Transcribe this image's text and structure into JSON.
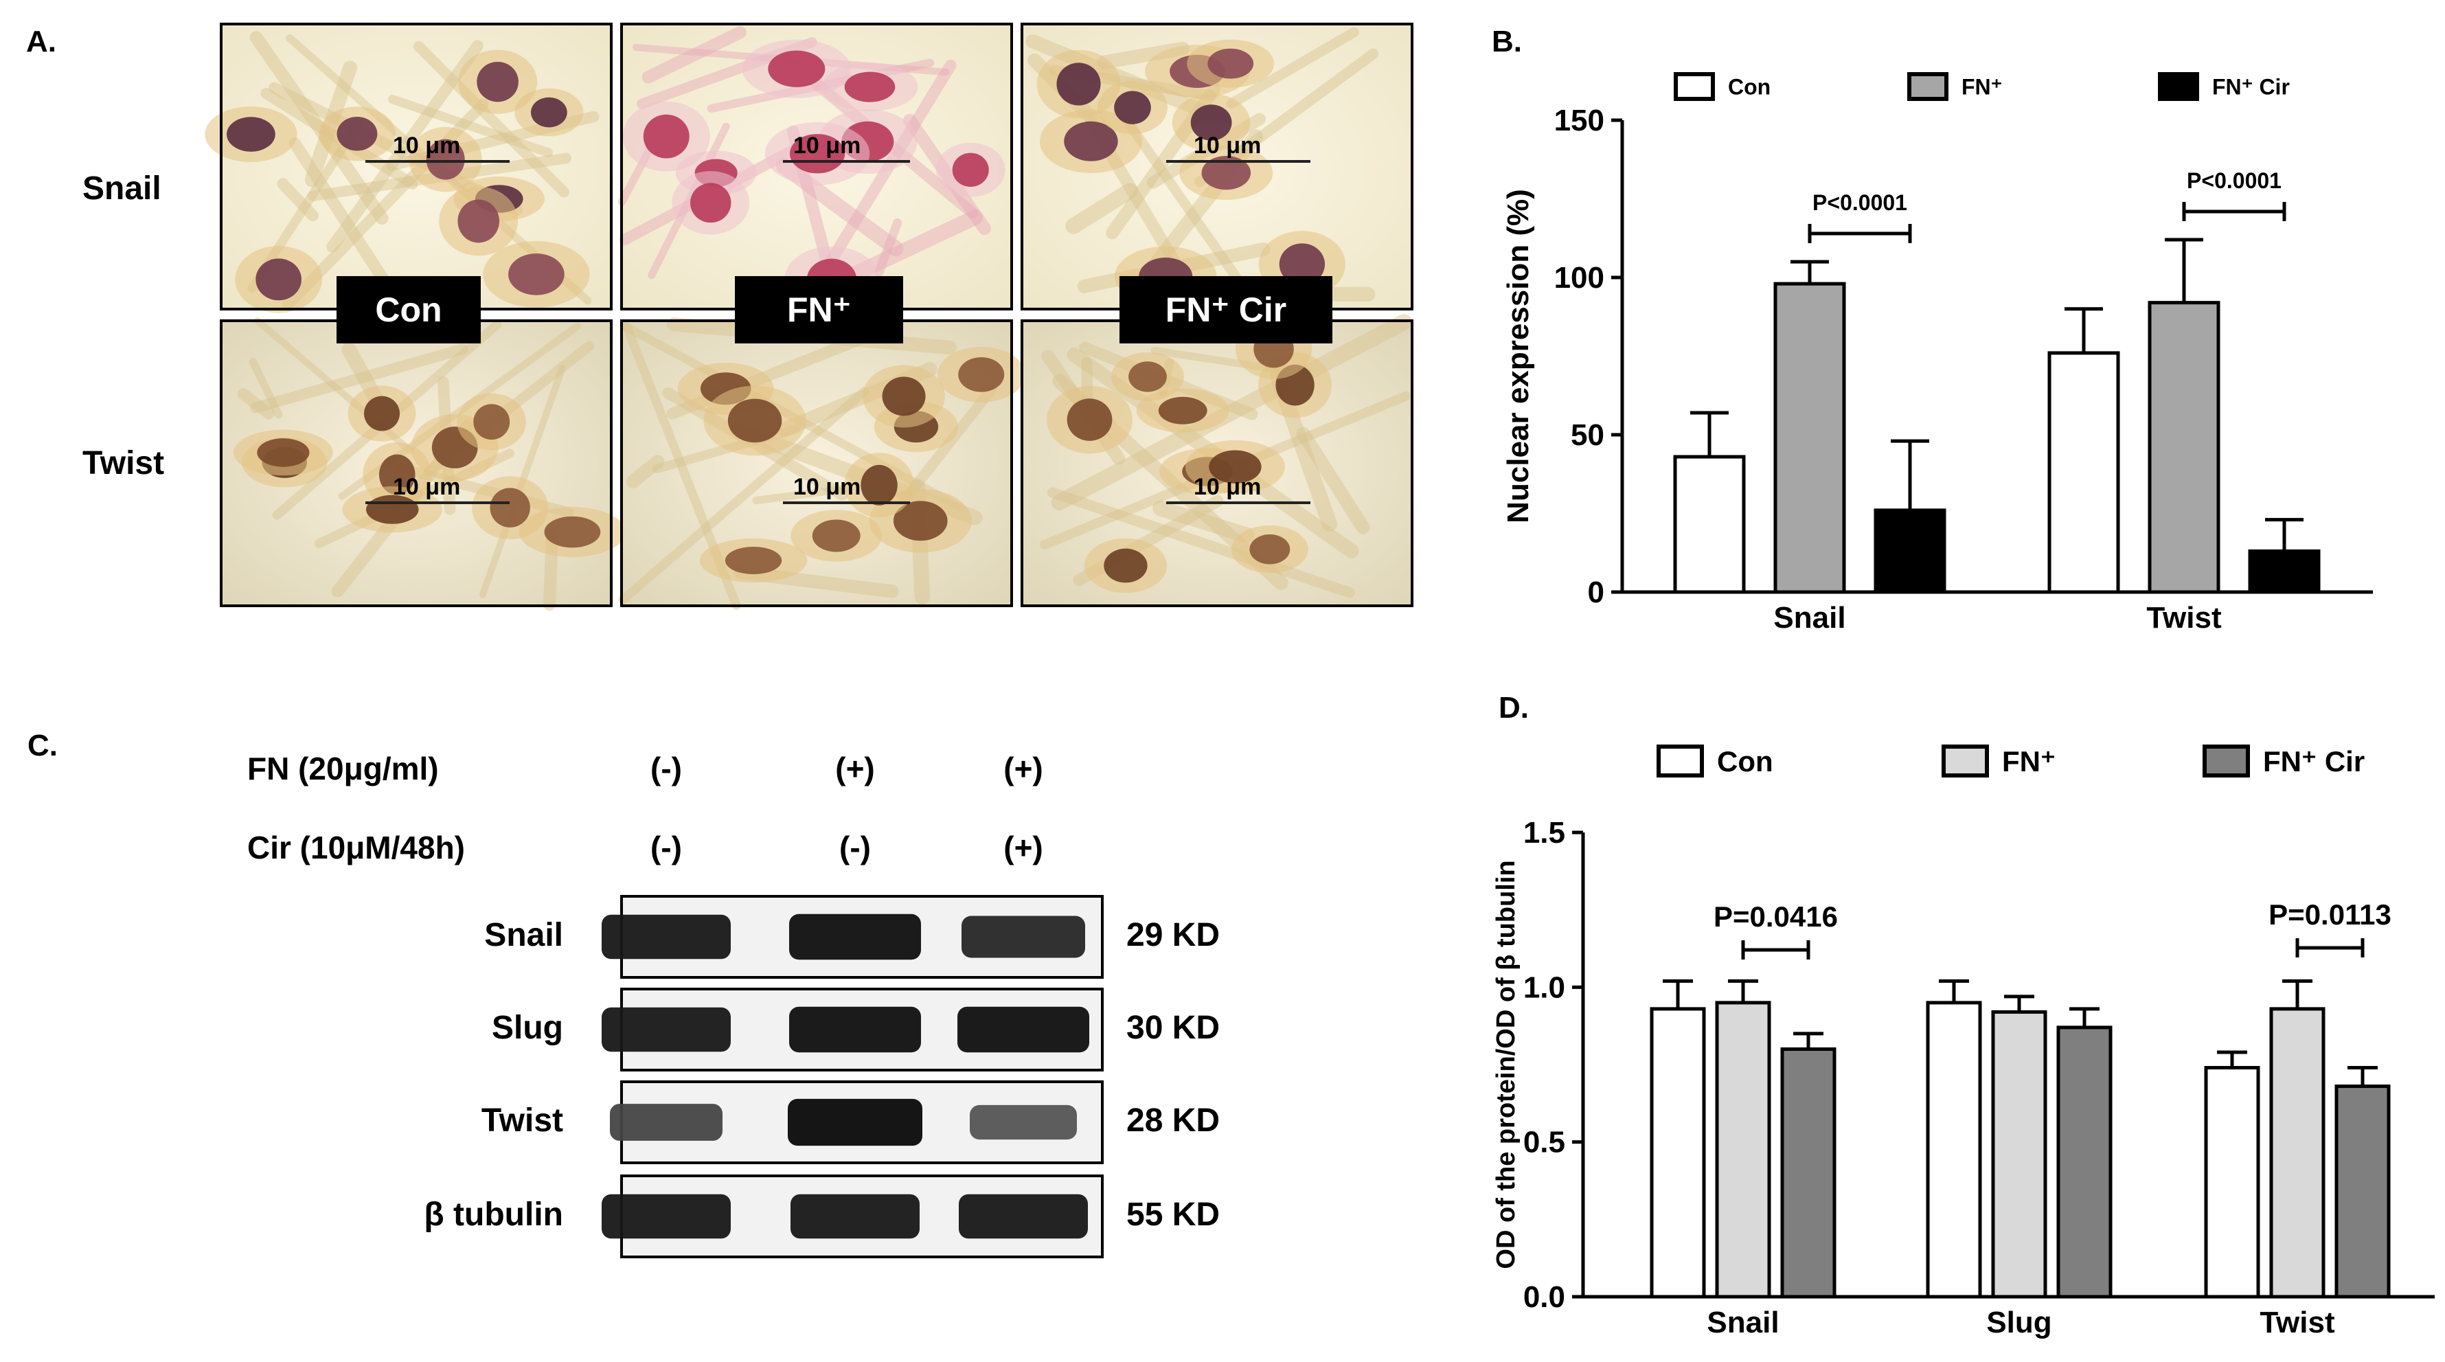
{
  "panel_a": {
    "label": "A.",
    "rows": [
      "Snail",
      "Twist"
    ],
    "conditions": [
      "Con",
      "FN⁺",
      "FN⁺ Cir"
    ],
    "scale_bar": "10 μm"
  },
  "panel_c": {
    "label": "C.",
    "treatments": [
      {
        "name": "FN (20μg/ml)",
        "marks": [
          "(-)",
          "(+)",
          "(+)"
        ]
      },
      {
        "name": "Cir (10μM/48h)",
        "marks": [
          "(-)",
          "(-)",
          "(+)"
        ]
      }
    ],
    "blots": [
      {
        "protein": "Snail",
        "size": "29 KD",
        "intensity": [
          0.85,
          0.9,
          0.75
        ]
      },
      {
        "protein": "Slug",
        "size": "30 KD",
        "intensity": [
          0.85,
          0.9,
          0.9
        ]
      },
      {
        "protein": "Twist",
        "size": "28 KD",
        "intensity": [
          0.55,
          0.95,
          0.45
        ]
      },
      {
        "protein": "β tubulin",
        "size": "55 KD",
        "intensity": [
          0.85,
          0.85,
          0.85
        ]
      }
    ]
  },
  "chart_data": [
    {
      "panel_label": "B.",
      "type": "bar",
      "categories": [
        "Snail",
        "Twist"
      ],
      "ylabel": "Nuclear expression (%)",
      "ylim": [
        0,
        150
      ],
      "yticks": [
        "0",
        "50",
        "100",
        "150"
      ],
      "legend_position": "top",
      "series": [
        {
          "name": "Con",
          "color": "#ffffff",
          "values": [
            43,
            76
          ],
          "errors": [
            14,
            14
          ]
        },
        {
          "name": "FN⁺",
          "color": "#a6a6a6",
          "values": [
            98,
            92
          ],
          "errors": [
            7,
            20
          ]
        },
        {
          "name": "FN⁺ Cir",
          "color": "#000000",
          "values": [
            26,
            13
          ],
          "errors": [
            22,
            10
          ]
        }
      ],
      "annotations": [
        {
          "text": "P<0.0001",
          "category": 0,
          "from_series": 1,
          "to_series": 2
        },
        {
          "text": "P<0.0001",
          "category": 1,
          "from_series": 1,
          "to_series": 2
        }
      ]
    },
    {
      "panel_label": "D.",
      "type": "bar",
      "categories": [
        "Snail",
        "Slug",
        "Twist"
      ],
      "ylabel": "OD of the protein/OD of β tubulin",
      "ylim": [
        0,
        1.5
      ],
      "yticks": [
        "0.0",
        "0.5",
        "1.0",
        "1.5"
      ],
      "legend_position": "top",
      "series": [
        {
          "name": "Con",
          "color": "#ffffff",
          "values": [
            0.93,
            0.95,
            0.74
          ],
          "errors": [
            0.09,
            0.07,
            0.05
          ]
        },
        {
          "name": "FN⁺",
          "color": "#d9d9d9",
          "values": [
            0.95,
            0.92,
            0.93
          ],
          "errors": [
            0.07,
            0.05,
            0.09
          ]
        },
        {
          "name": "FN⁺ Cir",
          "color": "#7f7f7f",
          "values": [
            0.8,
            0.87,
            0.68
          ],
          "errors": [
            0.05,
            0.06,
            0.06
          ]
        }
      ],
      "annotations": [
        {
          "text": "P=0.0416",
          "category": 0,
          "from_series": 1,
          "to_series": 2
        },
        {
          "text": "P=0.0113",
          "category": 2,
          "from_series": 1,
          "to_series": 2
        }
      ]
    }
  ]
}
